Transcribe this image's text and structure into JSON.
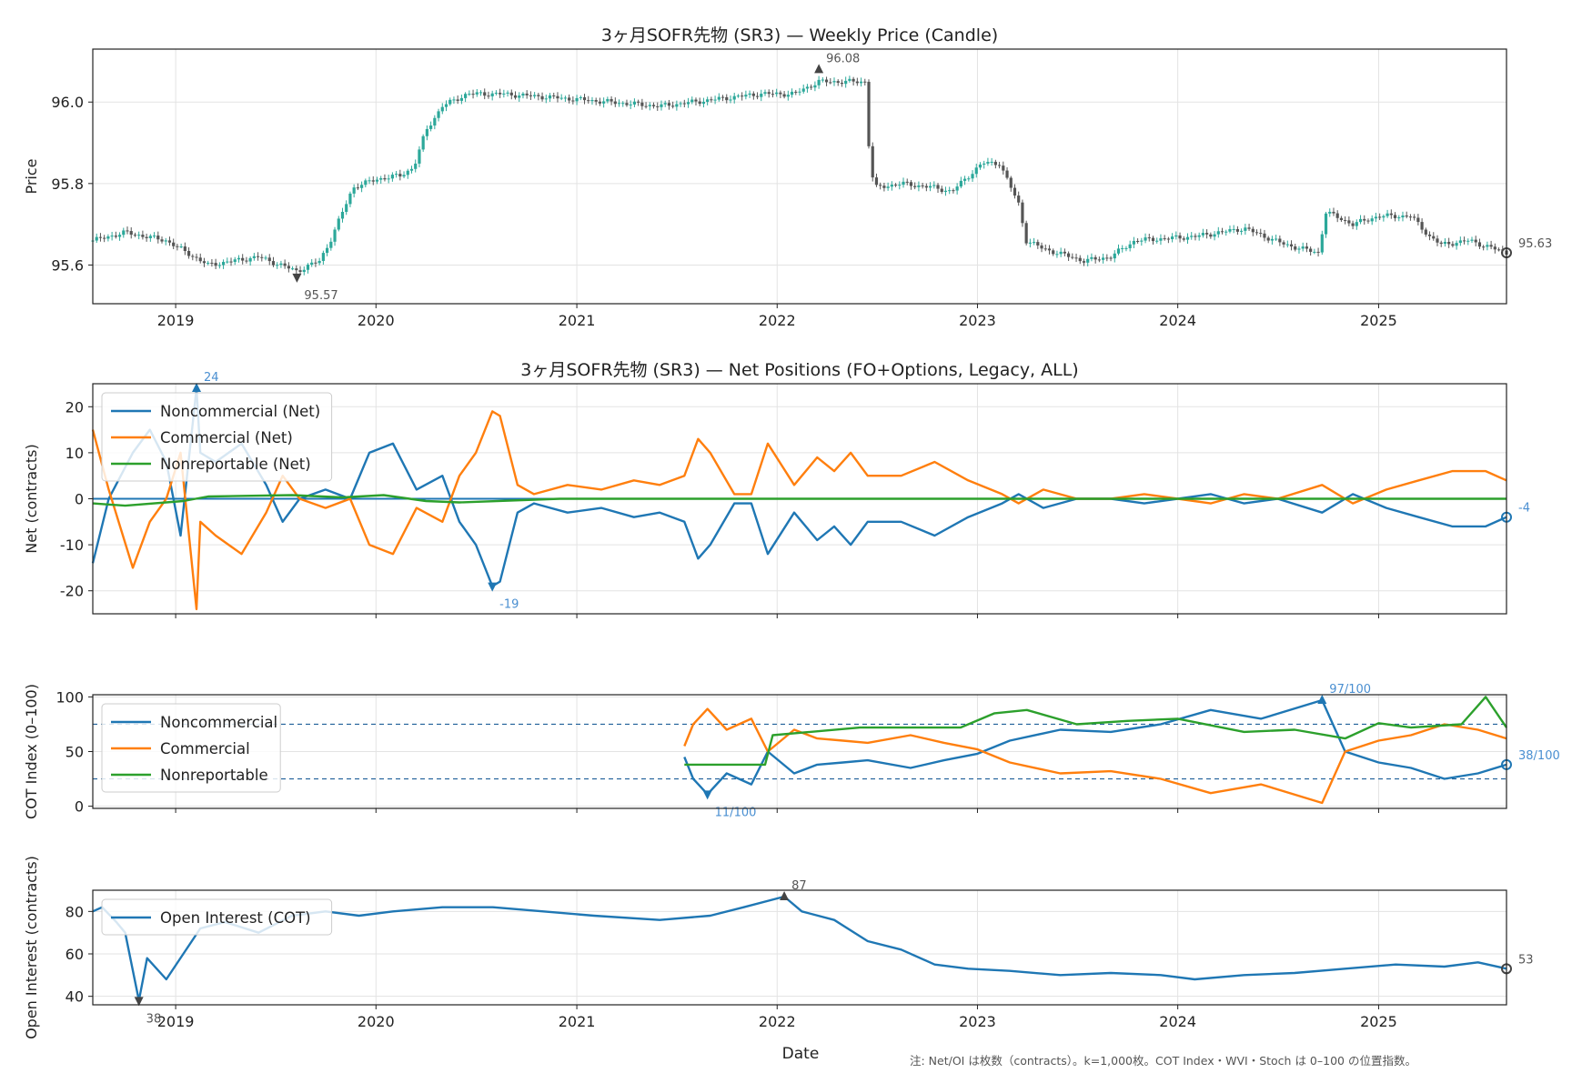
{
  "figure": {
    "note": "注: Net/OI は枚数（contracts）。k=1,000枚。COT Index・WVI・Stoch は 0–100 の位置指数。",
    "xlabel": "Date",
    "x_ticks": [
      "2019",
      "2020",
      "2021",
      "2022",
      "2023",
      "2024",
      "2025"
    ]
  },
  "chart_data": [
    {
      "type": "candlestick",
      "title": "3ヶ月SOFR先物 (SR3) — Weekly Price (Candle)",
      "ylabel": "Price",
      "xlim": [
        "2018-08-03",
        "2025-08-22"
      ],
      "ylim": [
        95.505,
        96.13
      ],
      "y_ticks": [
        "95.6",
        "95.8",
        "96.0"
      ],
      "grid": true,
      "colors": {
        "down": "#555555",
        "up": "#2ca89a"
      },
      "series": [
        {
          "x": [
            "2018-08-03",
            "2018-10-01",
            "2018-12-15",
            "2019-03-01",
            "2019-06-01",
            "2019-08-10",
            "2019-09-20",
            "2019-10-10",
            "2019-11-20",
            "2019-12-31",
            "2020-02-15",
            "2020-03-10",
            "2020-04-01",
            "2020-05-01",
            "2020-06-15",
            "2020-08-15",
            "2020-12-01",
            "2021-06-01",
            "2021-12-01",
            "2022-01-31",
            "2022-03-18",
            "2022-04-30",
            "2022-06-10",
            "2022-06-20",
            "2022-07-01",
            "2022-08-15",
            "2022-10-15",
            "2022-11-15",
            "2023-01-10",
            "2023-02-10",
            "2023-03-17",
            "2023-03-31",
            "2023-05-01",
            "2023-07-15",
            "2023-08-31",
            "2023-10-15",
            "2024-02-01",
            "2024-05-01",
            "2024-07-15",
            "2024-09-13",
            "2024-09-27",
            "2024-11-15",
            "2025-01-01",
            "2025-03-01",
            "2025-04-04",
            "2025-04-25",
            "2025-06-15",
            "2025-08-22"
          ],
          "y": [
            95.66,
            95.68,
            95.66,
            95.6,
            95.62,
            95.585,
            95.61,
            95.66,
            95.79,
            95.81,
            95.82,
            95.84,
            95.93,
            95.99,
            96.02,
            96.02,
            96.01,
            95.99,
            96.02,
            96.02,
            96.05,
            96.05,
            96.05,
            95.83,
            95.79,
            95.8,
            95.79,
            95.78,
            95.85,
            95.85,
            95.75,
            95.66,
            95.64,
            95.61,
            95.62,
            95.66,
            95.67,
            95.69,
            95.65,
            95.63,
            95.73,
            95.7,
            95.72,
            95.72,
            95.67,
            95.65,
            95.66,
            95.63
          ]
        }
      ],
      "annotations": [
        {
          "x": "2022-03-18",
          "y": 96.08,
          "text": "96.08"
        },
        {
          "x": "2019-08-10",
          "y": 95.57,
          "text": "95.57"
        },
        {
          "x": "2025-08-22",
          "y": 95.63,
          "text": "95.63"
        }
      ]
    },
    {
      "type": "line",
      "title": "3ヶ月SOFR先物 (SR3) — Net Positions (FO+Options, Legacy, ALL)",
      "ylabel": "Net (contracts)",
      "xlim": [
        "2018-08-03",
        "2025-08-22"
      ],
      "ylim": [
        -25,
        25
      ],
      "y_ticks": [
        "-20",
        "-10",
        "0",
        "10",
        "20"
      ],
      "grid": true,
      "legend": "top-left",
      "series": [
        {
          "name": "Noncommercial (Net)",
          "color": "#1f77b4",
          "x": [
            "2018-08-03",
            "2018-09-01",
            "2018-10-15",
            "2018-11-15",
            "2018-12-15",
            "2019-01-10",
            "2019-02-08",
            "2019-02-15",
            "2019-03-15",
            "2019-05-01",
            "2019-06-15",
            "2019-07-15",
            "2019-08-15",
            "2019-10-01",
            "2019-11-15",
            "2019-12-20",
            "2020-02-01",
            "2020-03-15",
            "2020-05-01",
            "2020-06-01",
            "2020-07-01",
            "2020-07-31",
            "2020-08-14",
            "2020-09-15",
            "2020-10-15",
            "2020-12-15",
            "2021-02-15",
            "2021-04-15",
            "2021-06-01",
            "2021-07-16",
            "2021-08-10",
            "2021-09-01",
            "2021-10-15",
            "2021-11-15",
            "2021-12-15",
            "2022-02-01",
            "2022-03-15",
            "2022-04-15",
            "2022-05-15",
            "2022-06-15",
            "2022-08-15",
            "2022-10-15",
            "2022-12-15",
            "2023-02-15",
            "2023-03-17",
            "2023-05-01",
            "2023-07-01",
            "2023-09-01",
            "2023-11-01",
            "2024-01-01",
            "2024-03-01",
            "2024-05-01",
            "2024-07-01",
            "2024-09-20",
            "2024-11-15",
            "2025-01-15",
            "2025-03-15",
            "2025-05-15",
            "2025-07-15",
            "2025-08-22"
          ],
          "y": [
            -14,
            0,
            10,
            15,
            8,
            -8,
            24,
            10,
            8,
            12,
            3,
            -5,
            0,
            2,
            0,
            10,
            12,
            2,
            5,
            -5,
            -10,
            -19,
            -18,
            -3,
            -1,
            -3,
            -2,
            -4,
            -3,
            -5,
            -13,
            -10,
            -1,
            -1,
            -12,
            -3,
            -9,
            -6,
            -10,
            -5,
            -5,
            -8,
            -4,
            -1,
            1,
            -2,
            0,
            0,
            -1,
            0,
            1,
            -1,
            0,
            -3,
            1,
            -2,
            -4,
            -6,
            -6,
            -4
          ]
        },
        {
          "name": "Commercial (Net)",
          "color": "#ff7f0e",
          "x": [
            "2018-08-03",
            "2018-09-01",
            "2018-10-15",
            "2018-11-15",
            "2018-12-15",
            "2019-01-10",
            "2019-02-08",
            "2019-02-15",
            "2019-03-15",
            "2019-05-01",
            "2019-06-15",
            "2019-07-15",
            "2019-08-15",
            "2019-10-01",
            "2019-11-15",
            "2019-12-20",
            "2020-02-01",
            "2020-03-15",
            "2020-05-01",
            "2020-06-01",
            "2020-07-01",
            "2020-07-31",
            "2020-08-14",
            "2020-09-15",
            "2020-10-15",
            "2020-12-15",
            "2021-02-15",
            "2021-04-15",
            "2021-06-01",
            "2021-07-16",
            "2021-08-10",
            "2021-09-01",
            "2021-10-15",
            "2021-11-15",
            "2021-12-15",
            "2022-02-01",
            "2022-03-15",
            "2022-04-15",
            "2022-05-15",
            "2022-06-15",
            "2022-08-15",
            "2022-10-15",
            "2022-12-15",
            "2023-02-15",
            "2023-03-17",
            "2023-05-01",
            "2023-07-01",
            "2023-09-01",
            "2023-11-01",
            "2024-01-01",
            "2024-03-01",
            "2024-05-01",
            "2024-07-01",
            "2024-09-20",
            "2024-11-15",
            "2025-01-15",
            "2025-03-15",
            "2025-05-15",
            "2025-07-15",
            "2025-08-22"
          ],
          "y": [
            15,
            2,
            -15,
            -5,
            0,
            10,
            -24,
            -5,
            -8,
            -12,
            -3,
            5,
            0,
            -2,
            0,
            -10,
            -12,
            -2,
            -5,
            5,
            10,
            19,
            18,
            3,
            1,
            3,
            2,
            4,
            3,
            5,
            13,
            10,
            1,
            1,
            12,
            3,
            9,
            6,
            10,
            5,
            5,
            8,
            4,
            1,
            -1,
            2,
            0,
            0,
            1,
            0,
            -1,
            1,
            0,
            3,
            -1,
            2,
            4,
            6,
            6,
            4
          ]
        },
        {
          "name": "Nonreportable (Net)",
          "color": "#2ca02c",
          "x": [
            "2018-08-03",
            "2018-10-01",
            "2019-01-15",
            "2019-03-01",
            "2019-08-01",
            "2019-11-01",
            "2020-01-15",
            "2020-04-01",
            "2020-06-01",
            "2020-12-01",
            "2022-06-01",
            "2023-06-01",
            "2024-06-01",
            "2025-08-22"
          ],
          "y": [
            -1,
            -1.5,
            -0.5,
            0.5,
            0.8,
            0.3,
            0.8,
            -0.5,
            -0.8,
            0,
            0,
            0,
            0,
            0
          ]
        }
      ],
      "annotations": [
        {
          "x": "2019-02-08",
          "y": 24,
          "text": "24"
        },
        {
          "x": "2020-07-31",
          "y": -19,
          "text": "-19"
        },
        {
          "x": "2025-08-22",
          "y": -4,
          "text": "-4"
        }
      ]
    },
    {
      "type": "line",
      "ylabel": "COT Index (0–100)",
      "xlim": [
        "2018-08-03",
        "2025-08-22"
      ],
      "ylim": [
        -2,
        102
      ],
      "y_ticks": [
        "0",
        "50",
        "100"
      ],
      "hlines": [
        25,
        75
      ],
      "grid": true,
      "legend": "top-left",
      "series": [
        {
          "name": "Noncommercial",
          "color": "#1f77b4",
          "x": [
            "2021-07-16",
            "2021-08-01",
            "2021-08-27",
            "2021-10-01",
            "2021-11-15",
            "2021-12-15",
            "2022-02-01",
            "2022-03-15",
            "2022-05-01",
            "2022-06-15",
            "2022-09-01",
            "2022-11-01",
            "2023-01-01",
            "2023-03-01",
            "2023-06-01",
            "2023-09-01",
            "2023-12-01",
            "2024-03-01",
            "2024-06-01",
            "2024-09-20",
            "2024-11-01",
            "2025-01-01",
            "2025-03-01",
            "2025-05-01",
            "2025-07-01",
            "2025-08-22"
          ],
          "y": [
            45,
            25,
            11,
            30,
            20,
            50,
            30,
            38,
            40,
            42,
            35,
            42,
            48,
            60,
            70,
            68,
            75,
            88,
            80,
            97,
            50,
            40,
            35,
            25,
            30,
            38
          ]
        },
        {
          "name": "Commercial",
          "color": "#ff7f0e",
          "x": [
            "2021-07-16",
            "2021-08-01",
            "2021-08-27",
            "2021-10-01",
            "2021-11-15",
            "2021-12-15",
            "2022-02-01",
            "2022-03-15",
            "2022-05-01",
            "2022-06-15",
            "2022-09-01",
            "2022-11-01",
            "2023-01-01",
            "2023-03-01",
            "2023-06-01",
            "2023-09-01",
            "2023-12-01",
            "2024-03-01",
            "2024-06-01",
            "2024-09-20",
            "2024-11-01",
            "2025-01-01",
            "2025-03-01",
            "2025-05-01",
            "2025-07-01",
            "2025-08-22"
          ],
          "y": [
            55,
            75,
            89,
            70,
            80,
            50,
            70,
            62,
            60,
            58,
            65,
            58,
            52,
            40,
            30,
            32,
            25,
            12,
            20,
            3,
            50,
            60,
            65,
            75,
            70,
            62
          ]
        },
        {
          "name": "Nonreportable",
          "color": "#2ca02c",
          "x": [
            "2021-07-16",
            "2021-12-10",
            "2021-12-24",
            "2022-06-01",
            "2022-12-01",
            "2023-02-01",
            "2023-04-01",
            "2023-07-01",
            "2023-10-01",
            "2024-01-01",
            "2024-05-01",
            "2024-08-01",
            "2024-11-01",
            "2025-01-01",
            "2025-03-01",
            "2025-06-01",
            "2025-07-15",
            "2025-08-22"
          ],
          "y": [
            38,
            38,
            65,
            72,
            72,
            85,
            88,
            75,
            78,
            80,
            68,
            70,
            62,
            76,
            72,
            75,
            100,
            72
          ]
        }
      ],
      "annotations": [
        {
          "x": "2024-09-20",
          "y": 97,
          "text": "97/100"
        },
        {
          "x": "2021-08-27",
          "y": 11,
          "text": "11/100"
        },
        {
          "x": "2025-08-22",
          "y": 38,
          "text": "38/100"
        }
      ]
    },
    {
      "type": "line",
      "ylabel": "Open Interest (contracts)",
      "xlim": [
        "2018-08-03",
        "2025-08-22"
      ],
      "ylim": [
        36,
        90
      ],
      "y_ticks": [
        "40",
        "60",
        "80"
      ],
      "grid": true,
      "legend": "top-left",
      "series": [
        {
          "name": "Open Interest (COT)",
          "color": "#1f77b4",
          "x": [
            "2018-08-03",
            "2018-08-20",
            "2018-09-15",
            "2018-10-01",
            "2018-10-26",
            "2018-11-10",
            "2018-12-15",
            "2019-01-15",
            "2019-02-15",
            "2019-04-01",
            "2019-06-01",
            "2019-08-01",
            "2019-10-01",
            "2019-12-01",
            "2020-02-01",
            "2020-05-01",
            "2020-08-01",
            "2020-11-01",
            "2021-02-01",
            "2021-06-01",
            "2021-09-01",
            "2021-11-01",
            "2022-01-14",
            "2022-02-15",
            "2022-04-15",
            "2022-06-15",
            "2022-08-15",
            "2022-10-15",
            "2022-12-15",
            "2023-03-01",
            "2023-06-01",
            "2023-09-01",
            "2023-12-01",
            "2024-02-01",
            "2024-05-01",
            "2024-08-01",
            "2024-11-01",
            "2025-02-01",
            "2025-05-01",
            "2025-07-01",
            "2025-08-22"
          ],
          "y": [
            80,
            82,
            75,
            70,
            38,
            58,
            48,
            60,
            72,
            75,
            70,
            78,
            80,
            78,
            80,
            82,
            82,
            80,
            78,
            76,
            78,
            82,
            87,
            80,
            76,
            66,
            62,
            55,
            53,
            52,
            50,
            51,
            50,
            48,
            50,
            51,
            53,
            55,
            54,
            56,
            53
          ]
        }
      ],
      "annotations": [
        {
          "x": "2022-01-14",
          "y": 87,
          "text": "87"
        },
        {
          "x": "2018-10-26",
          "y": 38,
          "text": "38"
        },
        {
          "x": "2025-08-22",
          "y": 53,
          "text": "53"
        }
      ]
    }
  ]
}
